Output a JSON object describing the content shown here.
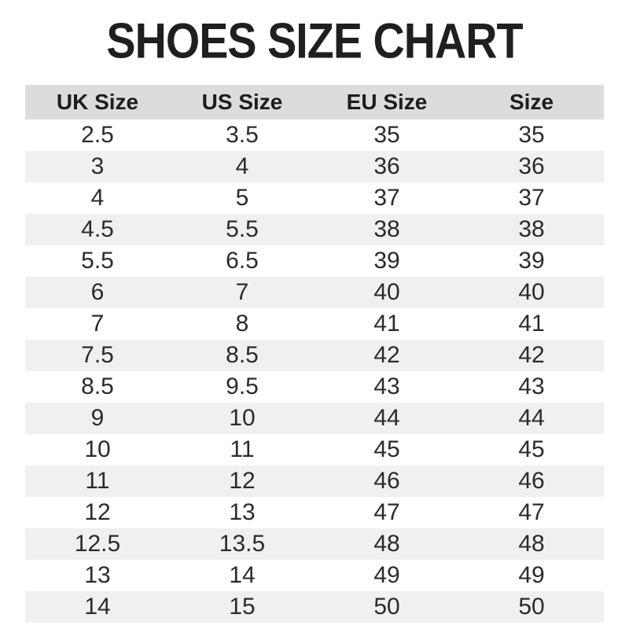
{
  "title": "SHOES SIZE CHART",
  "colors": {
    "header_bg": "#dcdcdc",
    "stripe_bg": "#f0f0f0",
    "row_bg": "#ffffff",
    "title": "#1f1f1f",
    "text": "#2b2b2b"
  },
  "chart_data": {
    "type": "table",
    "title": "SHOES SIZE CHART",
    "columns": [
      "UK Size",
      "US Size",
      "EU Size",
      "Size"
    ],
    "rows": [
      [
        "2.5",
        "3.5",
        "35",
        "35"
      ],
      [
        "3",
        "4",
        "36",
        "36"
      ],
      [
        "4",
        "5",
        "37",
        "37"
      ],
      [
        "4.5",
        "5.5",
        "38",
        "38"
      ],
      [
        "5.5",
        "6.5",
        "39",
        "39"
      ],
      [
        "6",
        "7",
        "40",
        "40"
      ],
      [
        "7",
        "8",
        "41",
        "41"
      ],
      [
        "7.5",
        "8.5",
        "42",
        "42"
      ],
      [
        "8.5",
        "9.5",
        "43",
        "43"
      ],
      [
        "9",
        "10",
        "44",
        "44"
      ],
      [
        "10",
        "11",
        "45",
        "45"
      ],
      [
        "11",
        "12",
        "46",
        "46"
      ],
      [
        "12",
        "13",
        "47",
        "47"
      ],
      [
        "12.5",
        "13.5",
        "48",
        "48"
      ],
      [
        "13",
        "14",
        "49",
        "49"
      ],
      [
        "14",
        "15",
        "50",
        "50"
      ]
    ],
    "layout": {
      "stripe_pattern": "alternating, first data row white",
      "alignment": "center",
      "grid": false
    }
  }
}
